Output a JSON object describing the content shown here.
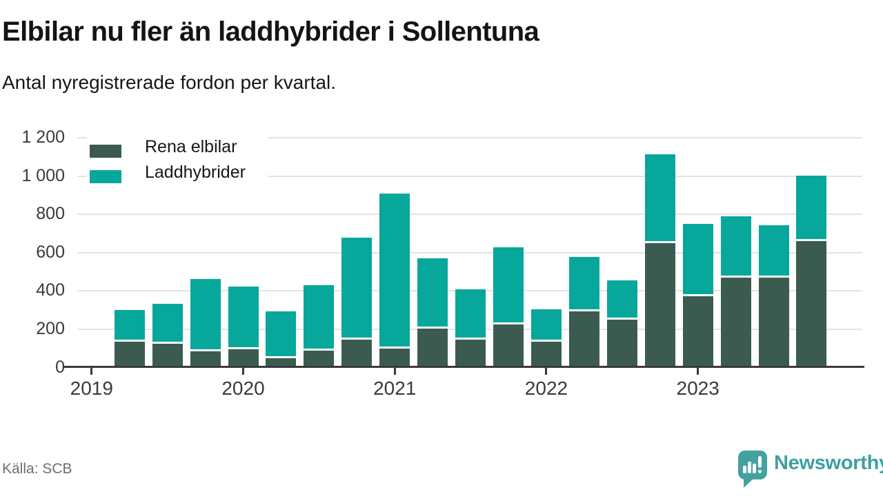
{
  "title": "Elbilar nu fler än laddhybrider i Sollentuna",
  "subtitle": "Antal nyregistrerade fordon per kvartal.",
  "source": "Källa: SCB",
  "branding": {
    "name": "Newsworthy",
    "icon": "newsworthy-speech-bubble-bar-chart-icon",
    "color": "#43a1a0"
  },
  "legend": [
    {
      "label": "Rena elbilar",
      "color": "#3b5b51"
    },
    {
      "label": "Laddhybrider",
      "color": "#07a79b"
    }
  ],
  "chart_data": {
    "type": "bar",
    "stacked": true,
    "title": "Elbilar nu fler än laddhybrider i Sollentuna",
    "subtitle": "Antal nyregistrerade fordon per kvartal.",
    "source": "Källa: SCB",
    "categories": [
      "2019 Q2",
      "2019 Q3",
      "2019 Q4",
      "2020 Q1",
      "2020 Q2",
      "2020 Q3",
      "2020 Q4",
      "2021 Q1",
      "2021 Q2",
      "2021 Q3",
      "2021 Q4",
      "2022 Q1",
      "2022 Q2",
      "2022 Q3",
      "2022 Q4",
      "2023 Q1",
      "2023 Q2",
      "2023 Q3",
      "2023 Q4"
    ],
    "series": [
      {
        "name": "Rena elbilar",
        "color": "#3b5b51",
        "values": [
          125,
          115,
          75,
          85,
          40,
          80,
          135,
          90,
          195,
          135,
          215,
          125,
          285,
          240,
          640,
          365,
          460,
          460,
          650
        ]
      },
      {
        "name": "Laddhybrider",
        "color": "#07a79b",
        "values": [
          165,
          210,
          380,
          330,
          245,
          340,
          535,
          810,
          365,
          265,
          405,
          170,
          285,
          205,
          465,
          375,
          320,
          275,
          345
        ]
      }
    ],
    "totals": [
      290,
      325,
      455,
      415,
      285,
      420,
      670,
      900,
      560,
      400,
      620,
      295,
      570,
      445,
      1105,
      740,
      780,
      735,
      995
    ],
    "xlabel": "",
    "ylabel": "",
    "ylim": [
      0,
      1200
    ],
    "yticks": [
      {
        "label": "0",
        "value": 0
      },
      {
        "label": "200",
        "value": 200
      },
      {
        "label": "400",
        "value": 400
      },
      {
        "label": "600",
        "value": 600
      },
      {
        "label": "800",
        "value": 800
      },
      {
        "label": "1 000",
        "value": 1000
      },
      {
        "label": "1 200",
        "value": 1200
      }
    ],
    "xticks": [
      "2019",
      "2020",
      "2021",
      "2022",
      "2023"
    ],
    "grid": "horizontal",
    "legend_position": "top-left"
  }
}
